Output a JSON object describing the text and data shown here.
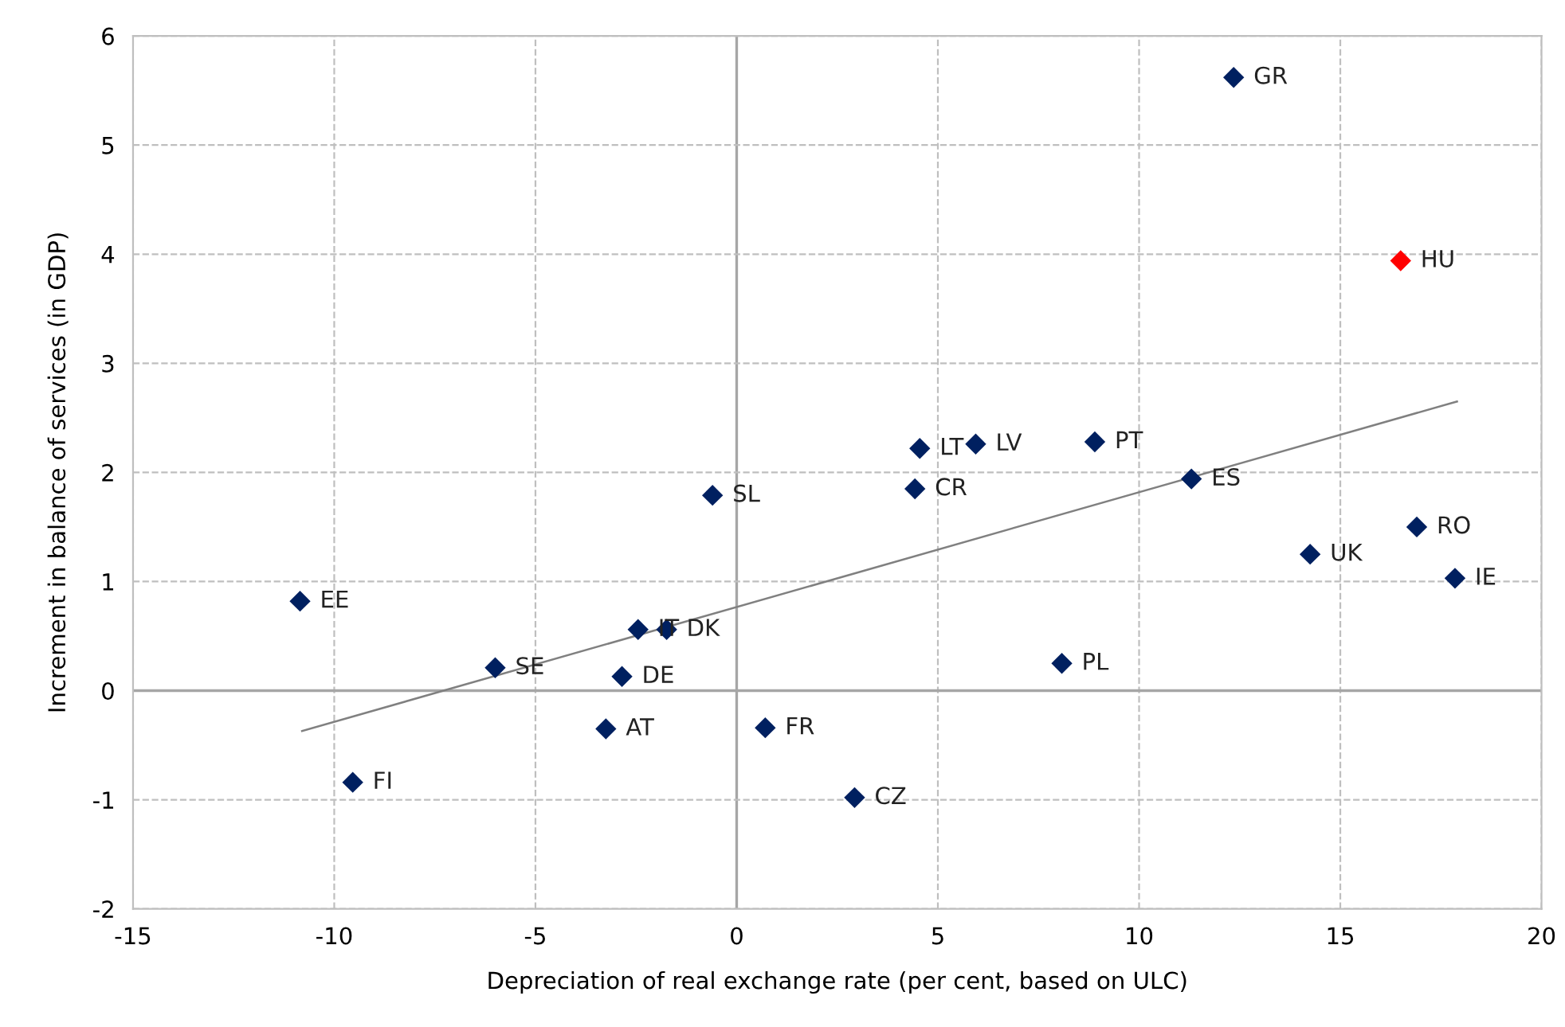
{
  "chart_data": {
    "type": "scatter",
    "xlabel": "Depreciation of real exchange rate (per cent, based on ULC)",
    "ylabel": "Increment in balance of services (in GDP)",
    "xlim": [
      -15,
      20
    ],
    "xticks": [
      -15,
      -10,
      -5,
      0,
      5,
      10,
      15,
      20
    ],
    "ylim": [
      -2,
      6
    ],
    "yticks": [
      -2,
      -1,
      0,
      1,
      2,
      3,
      4,
      5,
      6
    ],
    "grid": true,
    "series": [
      {
        "marker": "diamond",
        "x": [
          12.35,
          16.5,
          4.55,
          5.94,
          8.9,
          11.3,
          4.43,
          -0.6,
          16.9,
          14.25,
          17.85,
          -10.85,
          -2.45,
          -1.74,
          -6.0,
          -2.85,
          8.08,
          -3.25,
          0.71,
          -9.54,
          2.93
        ],
        "values": [
          5.62,
          3.94,
          2.22,
          2.26,
          2.28,
          1.94,
          1.85,
          1.79,
          1.5,
          1.25,
          1.03,
          0.82,
          0.56,
          0.56,
          0.21,
          0.13,
          0.25,
          -0.35,
          -0.34,
          -0.84,
          -0.98
        ],
        "colors": [
          "#002060",
          "#ff0000",
          "#002060",
          "#002060",
          "#002060",
          "#002060",
          "#002060",
          "#002060",
          "#002060",
          "#002060",
          "#002060",
          "#002060",
          "#002060",
          "#002060",
          "#002060",
          "#002060",
          "#002060",
          "#002060",
          "#002060",
          "#002060",
          "#002060"
        ]
      },
      {
        "type": "line",
        "color": "#808080",
        "line_style": "solid",
        "x": [
          -10.8,
          17.9
        ],
        "values": [
          -0.37,
          2.65
        ]
      }
    ],
    "annotations": [
      {
        "text": "GR",
        "x": 12.35,
        "y": 5.62
      },
      {
        "text": "HU",
        "x": 16.5,
        "y": 3.94
      },
      {
        "text": "LT",
        "x": 4.55,
        "y": 2.22
      },
      {
        "text": "LV",
        "x": 5.94,
        "y": 2.26
      },
      {
        "text": "PT",
        "x": 8.9,
        "y": 2.28
      },
      {
        "text": "ES",
        "x": 11.3,
        "y": 1.94
      },
      {
        "text": "CR",
        "x": 4.43,
        "y": 1.85
      },
      {
        "text": "SL",
        "x": -0.6,
        "y": 1.79
      },
      {
        "text": "RO",
        "x": 16.9,
        "y": 1.5
      },
      {
        "text": "UK",
        "x": 14.25,
        "y": 1.25
      },
      {
        "text": "IE",
        "x": 17.85,
        "y": 1.03
      },
      {
        "text": "EE",
        "x": -10.85,
        "y": 0.82
      },
      {
        "text": "IT",
        "x": -2.45,
        "y": 0.56
      },
      {
        "text": "DK",
        "x": -1.74,
        "y": 0.56
      },
      {
        "text": "SE",
        "x": -6.0,
        "y": 0.21
      },
      {
        "text": "DE",
        "x": -2.85,
        "y": 0.13
      },
      {
        "text": "PL",
        "x": 8.08,
        "y": 0.25
      },
      {
        "text": "AT",
        "x": -3.25,
        "y": -0.35
      },
      {
        "text": "FR",
        "x": 0.71,
        "y": -0.34
      },
      {
        "text": "FI",
        "x": -9.54,
        "y": -0.84
      },
      {
        "text": "CZ",
        "x": 2.93,
        "y": -0.98
      }
    ]
  }
}
